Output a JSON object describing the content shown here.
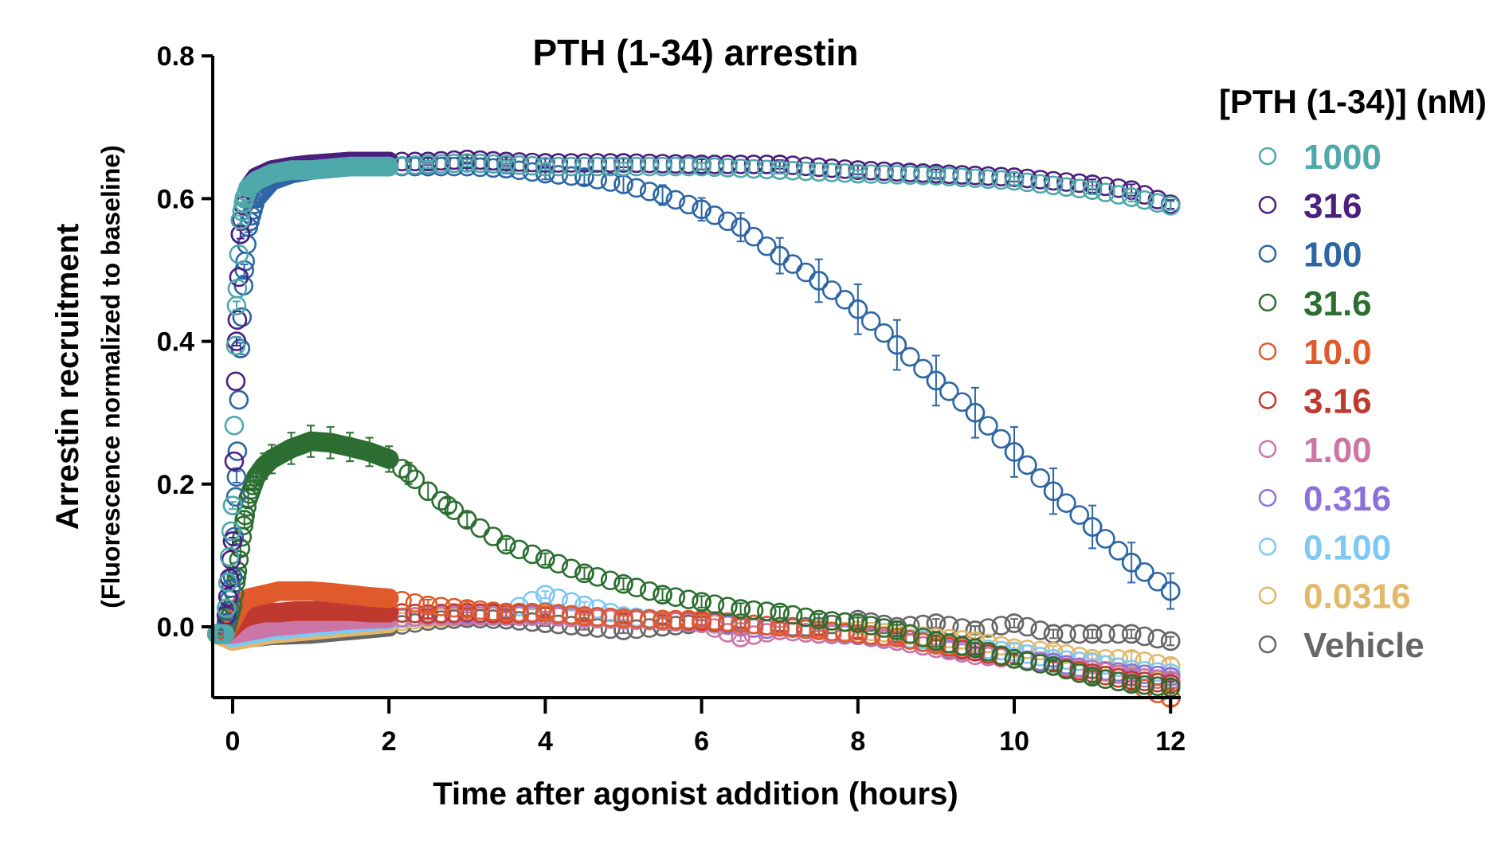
{
  "chart_data": {
    "type": "scatter",
    "title": "PTH (1-34) arrestin",
    "xlabel": "Time after agonist addition (hours)",
    "ylabel": "Arrestin recruitment",
    "ylabel_sub": "(Fluorescence normalized to baseline)",
    "xlim": [
      -0.3,
      12.1
    ],
    "ylim": [
      -0.09,
      0.8
    ],
    "xticks": [
      0,
      2,
      4,
      6,
      8,
      10,
      12
    ],
    "xtick_labels": [
      "0",
      "2",
      "4",
      "6",
      "8",
      "10",
      "12"
    ],
    "yticks": [
      0.0,
      0.2,
      0.4,
      0.6,
      0.8
    ],
    "ytick_labels": [
      "0.0",
      "0.2",
      "0.4",
      "0.6",
      "0.8"
    ],
    "grid": false,
    "marker": "open-circle-with-error-bars",
    "legend": {
      "title": "[PTH (1-34)] (nM)",
      "placement": "right"
    },
    "series": [
      {
        "name": "1000",
        "color": "#4FA8AA",
        "x": [
          -0.2,
          -0.1,
          0,
          0.05,
          0.1,
          0.15,
          0.2,
          0.3,
          0.5,
          0.75,
          1.0,
          1.5,
          2.0,
          2.5,
          3.0,
          3.5,
          4.0,
          5.0,
          6.0,
          7.0,
          8.0,
          9.0,
          10.0,
          11.0,
          11.5,
          12.0
        ],
        "y": [
          -0.01,
          -0.01,
          0.17,
          0.45,
          0.57,
          0.6,
          0.615,
          0.625,
          0.635,
          0.64,
          0.64,
          0.645,
          0.645,
          0.648,
          0.65,
          0.648,
          0.645,
          0.645,
          0.645,
          0.64,
          0.635,
          0.632,
          0.625,
          0.612,
          0.602,
          0.59
        ],
        "err": [
          0.003,
          0.003,
          0.005,
          0.006,
          0.006,
          0.005,
          0.005,
          0.004,
          0.004,
          0.004,
          0.004,
          0.004,
          0.004,
          0.005,
          0.005,
          0.005,
          0.005,
          0.005,
          0.005,
          0.005,
          0.005,
          0.005,
          0.006,
          0.006,
          0.006,
          0.006
        ]
      },
      {
        "name": "316",
        "color": "#4B1F7E",
        "x": [
          -0.2,
          -0.1,
          0,
          0.05,
          0.1,
          0.15,
          0.2,
          0.3,
          0.5,
          0.75,
          1.0,
          1.5,
          2.0,
          2.5,
          3.0,
          3.5,
          4.0,
          5.0,
          6.0,
          7.0,
          8.0,
          9.0,
          10.0,
          11.0,
          11.5,
          12.0
        ],
        "y": [
          -0.01,
          -0.01,
          0.12,
          0.4,
          0.55,
          0.6,
          0.615,
          0.63,
          0.64,
          0.645,
          0.648,
          0.652,
          0.652,
          0.652,
          0.655,
          0.652,
          0.65,
          0.65,
          0.648,
          0.648,
          0.64,
          0.635,
          0.63,
          0.62,
          0.612,
          0.592
        ],
        "err": [
          0.003,
          0.003,
          0.005,
          0.006,
          0.006,
          0.005,
          0.005,
          0.005,
          0.005,
          0.005,
          0.005,
          0.005,
          0.005,
          0.005,
          0.006,
          0.006,
          0.006,
          0.006,
          0.007,
          0.006,
          0.006,
          0.006,
          0.006,
          0.007,
          0.008,
          0.006
        ]
      },
      {
        "name": "100",
        "color": "#2E66A4",
        "x": [
          -0.2,
          -0.1,
          0,
          0.05,
          0.1,
          0.15,
          0.2,
          0.3,
          0.5,
          0.75,
          1.0,
          1.5,
          2.0,
          2.5,
          3.0,
          3.5,
          4.0,
          4.5,
          5.0,
          5.5,
          6.0,
          6.5,
          7.0,
          7.5,
          8.0,
          8.5,
          9.0,
          9.5,
          10.0,
          10.5,
          11.0,
          11.5,
          12.0
        ],
        "y": [
          -0.01,
          -0.01,
          0.07,
          0.21,
          0.39,
          0.5,
          0.56,
          0.6,
          0.625,
          0.635,
          0.64,
          0.645,
          0.645,
          0.645,
          0.645,
          0.642,
          0.635,
          0.63,
          0.62,
          0.605,
          0.585,
          0.56,
          0.52,
          0.485,
          0.445,
          0.395,
          0.345,
          0.3,
          0.245,
          0.19,
          0.14,
          0.09,
          0.05
        ],
        "err": [
          0.003,
          0.003,
          0.006,
          0.008,
          0.008,
          0.008,
          0.007,
          0.006,
          0.006,
          0.005,
          0.005,
          0.005,
          0.005,
          0.005,
          0.006,
          0.007,
          0.008,
          0.01,
          0.012,
          0.014,
          0.016,
          0.02,
          0.025,
          0.03,
          0.035,
          0.035,
          0.035,
          0.035,
          0.035,
          0.032,
          0.03,
          0.028,
          0.025
        ]
      },
      {
        "name": "31.6",
        "color": "#2C6E31",
        "x": [
          -0.2,
          -0.1,
          0,
          0.05,
          0.1,
          0.15,
          0.2,
          0.3,
          0.4,
          0.5,
          0.75,
          1.0,
          1.25,
          1.5,
          1.75,
          2.0,
          2.25,
          2.5,
          2.75,
          3.0,
          3.5,
          4.0,
          4.5,
          5.0,
          5.5,
          6.0,
          6.5,
          7.0,
          7.5,
          8.0,
          8.5,
          9.0,
          9.5,
          10.0,
          10.5,
          11.0,
          11.5,
          12.0
        ],
        "y": [
          -0.01,
          -0.01,
          0.03,
          0.07,
          0.11,
          0.15,
          0.18,
          0.21,
          0.225,
          0.235,
          0.25,
          0.26,
          0.258,
          0.252,
          0.245,
          0.235,
          0.215,
          0.19,
          0.17,
          0.15,
          0.115,
          0.095,
          0.075,
          0.06,
          0.045,
          0.035,
          0.025,
          0.02,
          0.01,
          0.005,
          -0.005,
          -0.02,
          -0.03,
          -0.045,
          -0.055,
          -0.07,
          -0.08,
          -0.085
        ],
        "err": [
          0.003,
          0.003,
          0.005,
          0.008,
          0.01,
          0.012,
          0.014,
          0.016,
          0.018,
          0.02,
          0.022,
          0.022,
          0.022,
          0.02,
          0.02,
          0.018,
          0.015,
          0.012,
          0.01,
          0.01,
          0.008,
          0.008,
          0.008,
          0.008,
          0.008,
          0.008,
          0.008,
          0.008,
          0.008,
          0.008,
          0.008,
          0.008,
          0.008,
          0.008,
          0.008,
          0.008,
          0.008,
          0.008
        ]
      },
      {
        "name": "10.0",
        "color": "#E05A2B",
        "x": [
          -0.2,
          -0.1,
          0,
          0.1,
          0.2,
          0.4,
          0.6,
          0.8,
          1.0,
          1.25,
          1.5,
          1.75,
          2.0,
          2.5,
          3.0,
          3.5,
          4.0,
          4.5,
          5.0,
          5.5,
          6.0,
          6.5,
          7.0,
          7.5,
          8.0,
          8.5,
          9.0,
          9.5,
          10.0,
          10.5,
          11.0,
          11.5,
          12.0
        ],
        "y": [
          -0.01,
          -0.01,
          0.01,
          0.03,
          0.04,
          0.045,
          0.05,
          0.05,
          0.05,
          0.048,
          0.045,
          0.042,
          0.04,
          0.03,
          0.025,
          0.02,
          0.02,
          0.015,
          0.012,
          0.01,
          0.01,
          0.005,
          0.0,
          -0.005,
          -0.01,
          -0.015,
          -0.025,
          -0.03,
          -0.045,
          -0.055,
          -0.07,
          -0.08,
          -0.1
        ],
        "err": [
          0.003,
          0.003,
          0.005,
          0.006,
          0.007,
          0.008,
          0.008,
          0.008,
          0.008,
          0.008,
          0.008,
          0.008,
          0.008,
          0.008,
          0.01,
          0.01,
          0.008,
          0.008,
          0.008,
          0.008,
          0.008,
          0.008,
          0.008,
          0.008,
          0.008,
          0.008,
          0.008,
          0.008,
          0.008,
          0.008,
          0.01,
          0.01,
          0.01
        ]
      },
      {
        "name": "3.16",
        "color": "#C0392F",
        "x": [
          -0.2,
          -0.1,
          0,
          0.1,
          0.2,
          0.4,
          0.6,
          0.8,
          1.0,
          1.25,
          1.5,
          1.75,
          2.0,
          2.5,
          3.0,
          3.5,
          4.0,
          4.5,
          5.0,
          5.5,
          6.0,
          6.5,
          7.0,
          7.5,
          8.0,
          8.5,
          9.0,
          9.5,
          10.0,
          10.5,
          11.0,
          11.5,
          12.0
        ],
        "y": [
          -0.01,
          -0.01,
          0.0,
          0.01,
          0.015,
          0.02,
          0.02,
          0.022,
          0.022,
          0.022,
          0.022,
          0.02,
          0.02,
          0.018,
          0.02,
          0.018,
          0.02,
          0.015,
          0.012,
          0.01,
          0.008,
          0.005,
          0.0,
          -0.005,
          -0.01,
          -0.015,
          -0.025,
          -0.035,
          -0.045,
          -0.055,
          -0.065,
          -0.075,
          -0.08
        ],
        "err": [
          0.003,
          0.003,
          0.004,
          0.005,
          0.006,
          0.006,
          0.006,
          0.006,
          0.006,
          0.006,
          0.006,
          0.006,
          0.006,
          0.006,
          0.006,
          0.006,
          0.006,
          0.006,
          0.006,
          0.006,
          0.006,
          0.006,
          0.006,
          0.006,
          0.006,
          0.006,
          0.006,
          0.006,
          0.006,
          0.006,
          0.006,
          0.006,
          0.006
        ]
      },
      {
        "name": "1.00",
        "color": "#CC76A6",
        "x": [
          -0.2,
          -0.1,
          0,
          0.25,
          0.5,
          1.0,
          1.5,
          2.0,
          2.5,
          3.0,
          3.5,
          4.0,
          4.5,
          5.0,
          5.5,
          6.0,
          6.5,
          7.0,
          7.5,
          8.0,
          8.5,
          9.0,
          9.5,
          10.0,
          10.5,
          11.0,
          11.5,
          12.0
        ],
        "y": [
          -0.01,
          -0.01,
          -0.01,
          -0.005,
          0.0,
          0.005,
          0.01,
          0.012,
          0.015,
          0.015,
          0.015,
          0.015,
          0.012,
          0.01,
          0.008,
          0.005,
          -0.015,
          -0.005,
          -0.01,
          -0.01,
          -0.02,
          -0.03,
          -0.04,
          -0.045,
          -0.055,
          -0.06,
          -0.07,
          -0.075
        ],
        "err": [
          0.003,
          0.003,
          0.004,
          0.005,
          0.005,
          0.005,
          0.005,
          0.005,
          0.005,
          0.005,
          0.005,
          0.005,
          0.005,
          0.005,
          0.005,
          0.005,
          0.005,
          0.005,
          0.005,
          0.005,
          0.005,
          0.005,
          0.005,
          0.005,
          0.005,
          0.005,
          0.005,
          0.005
        ]
      },
      {
        "name": "0.316",
        "color": "#8B72DB",
        "x": [
          -0.2,
          -0.1,
          0,
          0.25,
          0.5,
          1.0,
          1.5,
          2.0,
          2.5,
          3.0,
          3.5,
          4.0,
          4.5,
          5.0,
          5.5,
          6.0,
          6.5,
          7.0,
          7.5,
          8.0,
          8.5,
          9.0,
          9.5,
          10.0,
          10.5,
          11.0,
          11.5,
          12.0
        ],
        "y": [
          -0.01,
          -0.01,
          -0.01,
          -0.005,
          0.0,
          0.005,
          0.01,
          0.012,
          0.015,
          0.018,
          0.018,
          0.016,
          0.015,
          0.012,
          0.01,
          0.008,
          0.0,
          -0.005,
          -0.01,
          -0.012,
          -0.02,
          -0.03,
          -0.035,
          -0.045,
          -0.05,
          -0.06,
          -0.065,
          -0.07
        ],
        "err": [
          0.003,
          0.003,
          0.004,
          0.005,
          0.005,
          0.005,
          0.005,
          0.005,
          0.005,
          0.005,
          0.005,
          0.005,
          0.005,
          0.005,
          0.005,
          0.005,
          0.005,
          0.005,
          0.005,
          0.005,
          0.005,
          0.005,
          0.005,
          0.005,
          0.005,
          0.005,
          0.005,
          0.005
        ]
      },
      {
        "name": "0.100",
        "color": "#7EC8F6",
        "x": [
          -0.2,
          -0.1,
          0,
          0.25,
          0.5,
          1.0,
          1.5,
          2.0,
          2.5,
          3.0,
          3.5,
          4.0,
          4.5,
          5.0,
          5.5,
          6.0,
          6.5,
          7.0,
          7.5,
          8.0,
          8.5,
          9.0,
          9.5,
          10.0,
          10.5,
          11.0,
          11.5,
          12.0
        ],
        "y": [
          -0.01,
          -0.01,
          -0.015,
          -0.01,
          -0.005,
          0.0,
          0.005,
          0.01,
          0.015,
          0.018,
          0.02,
          0.045,
          0.03,
          0.015,
          0.01,
          0.008,
          0.005,
          0.0,
          -0.005,
          -0.01,
          -0.015,
          -0.02,
          -0.03,
          -0.035,
          -0.045,
          -0.05,
          -0.06,
          -0.065
        ],
        "err": [
          0.003,
          0.003,
          0.004,
          0.005,
          0.005,
          0.005,
          0.005,
          0.005,
          0.005,
          0.005,
          0.005,
          0.005,
          0.005,
          0.005,
          0.005,
          0.005,
          0.005,
          0.005,
          0.005,
          0.005,
          0.005,
          0.005,
          0.005,
          0.005,
          0.005,
          0.005,
          0.006,
          0.006
        ]
      },
      {
        "name": "0.0316",
        "color": "#E2B86B",
        "x": [
          -0.2,
          -0.1,
          0,
          0.25,
          0.5,
          1.0,
          1.5,
          2.0,
          2.5,
          3.0,
          3.5,
          4.0,
          4.5,
          5.0,
          5.5,
          6.0,
          6.5,
          7.0,
          7.5,
          8.0,
          8.5,
          9.0,
          9.5,
          10.0,
          10.5,
          11.0,
          11.5,
          12.0
        ],
        "y": [
          -0.01,
          -0.015,
          -0.02,
          -0.015,
          -0.01,
          -0.005,
          0.0,
          0.005,
          0.012,
          0.015,
          0.015,
          0.015,
          0.012,
          0.01,
          0.008,
          0.005,
          0.0,
          -0.005,
          -0.01,
          -0.005,
          -0.01,
          -0.015,
          -0.02,
          -0.03,
          -0.035,
          -0.045,
          -0.045,
          -0.055
        ],
        "err": [
          0.003,
          0.003,
          0.004,
          0.005,
          0.005,
          0.005,
          0.005,
          0.005,
          0.005,
          0.005,
          0.005,
          0.005,
          0.005,
          0.005,
          0.005,
          0.005,
          0.005,
          0.005,
          0.005,
          0.005,
          0.005,
          0.005,
          0.008,
          0.008,
          0.008,
          0.008,
          0.01,
          0.01
        ]
      },
      {
        "name": "Vehicle",
        "color": "#666666",
        "x": [
          -0.2,
          -0.1,
          0,
          0.25,
          0.5,
          1.0,
          1.5,
          2.0,
          2.5,
          3.0,
          3.5,
          4.0,
          4.5,
          5.0,
          5.5,
          6.0,
          6.5,
          7.0,
          7.5,
          8.0,
          8.5,
          9.0,
          9.5,
          10.0,
          10.5,
          11.0,
          11.5,
          12.0
        ],
        "y": [
          -0.01,
          -0.015,
          -0.015,
          -0.015,
          -0.012,
          -0.01,
          -0.005,
          0.0,
          0.008,
          0.012,
          0.01,
          0.005,
          0.0,
          -0.005,
          0.0,
          0.005,
          0.005,
          0.0,
          0.0,
          0.01,
          0.0,
          0.005,
          -0.005,
          0.005,
          -0.01,
          -0.01,
          -0.01,
          -0.02
        ],
        "err": [
          0.003,
          0.003,
          0.004,
          0.004,
          0.004,
          0.004,
          0.004,
          0.004,
          0.004,
          0.004,
          0.004,
          0.004,
          0.004,
          0.004,
          0.004,
          0.004,
          0.005,
          0.005,
          0.006,
          0.008,
          0.008,
          0.006,
          0.006,
          0.006,
          0.006,
          0.006,
          0.006,
          0.006
        ]
      }
    ]
  }
}
